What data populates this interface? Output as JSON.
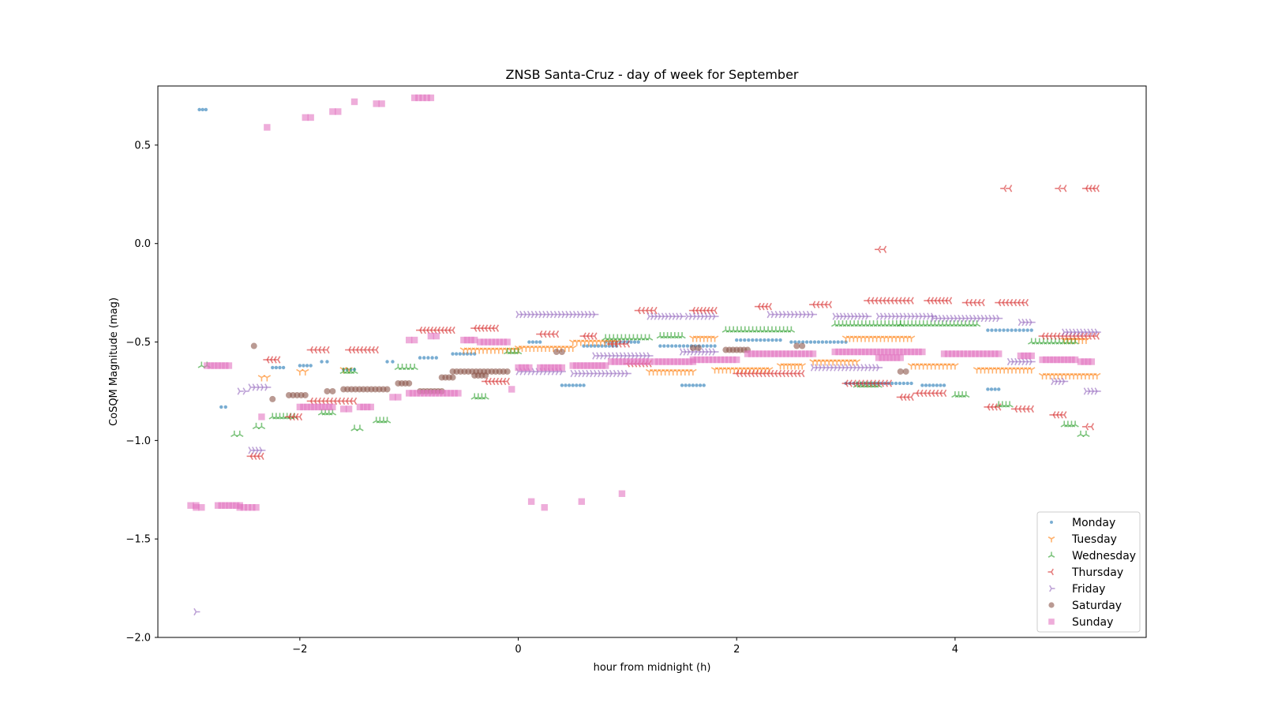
{
  "chart_data": {
    "type": "scatter",
    "title": "ZNSB Santa-Cruz - day of week for September",
    "xlabel": "hour from midnight (h)",
    "ylabel": "CoSQM Magnitude (mag)",
    "xlim": [
      -3.3,
      5.75
    ],
    "ylim": [
      -2.0,
      0.8
    ],
    "xticks": [
      -2,
      0,
      2,
      4
    ],
    "yticks": [
      0.5,
      0.0,
      -0.5,
      -1.0,
      -1.5,
      -2.0
    ],
    "xtick_labels": [
      "−2",
      "0",
      "2",
      "4"
    ],
    "ytick_labels": [
      "0.5",
      "0.0",
      "−0.5",
      "−1.0",
      "−1.5",
      "−2.0"
    ],
    "grid": false,
    "legend_position": "bottom-right",
    "series": [
      {
        "name": "Monday",
        "marker": "point",
        "color": "#1f77b4",
        "segments": [
          [
            -2.92,
            -2.86,
            0.68
          ],
          [
            -2.72,
            -2.68,
            -0.83
          ],
          [
            -2.25,
            -2.15,
            -0.63
          ],
          [
            -2.0,
            -1.9,
            -0.62
          ],
          [
            -1.8,
            -1.75,
            -0.6
          ],
          [
            -1.2,
            -1.15,
            -0.6
          ],
          [
            -0.9,
            -0.75,
            -0.58
          ],
          [
            -0.6,
            -0.4,
            -0.56
          ],
          [
            0.1,
            0.2,
            -0.5
          ],
          [
            0.4,
            0.6,
            -0.72
          ],
          [
            0.8,
            1.1,
            -0.5
          ],
          [
            1.3,
            1.8,
            -0.52
          ],
          [
            1.5,
            1.7,
            -0.72
          ],
          [
            2.0,
            2.4,
            -0.49
          ],
          [
            2.5,
            3.0,
            -0.5
          ],
          [
            3.0,
            3.6,
            -0.71
          ],
          [
            3.7,
            3.9,
            -0.72
          ],
          [
            4.3,
            4.7,
            -0.44
          ],
          [
            4.3,
            4.4,
            -0.74
          ],
          [
            0.6,
            0.9,
            -0.52
          ],
          [
            -1.6,
            -1.5,
            -0.64
          ]
        ]
      },
      {
        "name": "Tuesday",
        "marker": "tri_down",
        "color": "#ff7f0e",
        "segments": [
          [
            -2.35,
            -2.3,
            -0.68
          ],
          [
            -2.0,
            -1.95,
            -0.65
          ],
          [
            -1.6,
            -1.55,
            -0.64
          ],
          [
            -0.5,
            0.0,
            -0.54
          ],
          [
            0.0,
            0.5,
            -0.53
          ],
          [
            0.5,
            0.9,
            -0.5
          ],
          [
            1.2,
            1.6,
            -0.65
          ],
          [
            1.6,
            1.8,
            -0.48
          ],
          [
            1.8,
            2.3,
            -0.64
          ],
          [
            2.4,
            2.6,
            -0.62
          ],
          [
            2.7,
            3.1,
            -0.6
          ],
          [
            3.0,
            3.6,
            -0.48
          ],
          [
            3.6,
            4.0,
            -0.62
          ],
          [
            4.2,
            4.7,
            -0.64
          ],
          [
            4.8,
            5.3,
            -0.67
          ],
          [
            5.0,
            5.2,
            -0.49
          ]
        ]
      },
      {
        "name": "Wednesday",
        "marker": "tri_up",
        "color": "#2ca02c",
        "segments": [
          [
            -2.9,
            -2.85,
            -0.62
          ],
          [
            -2.6,
            -2.55,
            -0.97
          ],
          [
            -2.4,
            -2.35,
            -0.93
          ],
          [
            -2.25,
            -2.05,
            -0.88
          ],
          [
            -1.8,
            -1.7,
            -0.86
          ],
          [
            -1.6,
            -1.5,
            -0.65
          ],
          [
            -1.5,
            -1.45,
            -0.94
          ],
          [
            -1.3,
            -1.2,
            -0.9
          ],
          [
            -1.1,
            -0.95,
            -0.63
          ],
          [
            -0.4,
            -0.3,
            -0.78
          ],
          [
            -0.1,
            0.0,
            -0.55
          ],
          [
            0.8,
            1.2,
            -0.48
          ],
          [
            1.3,
            1.5,
            -0.47
          ],
          [
            1.9,
            2.5,
            -0.44
          ],
          [
            2.9,
            3.5,
            -0.41
          ],
          [
            3.5,
            4.2,
            -0.41
          ],
          [
            4.0,
            4.1,
            -0.77
          ],
          [
            4.4,
            4.5,
            -0.82
          ],
          [
            4.7,
            5.1,
            -0.5
          ],
          [
            5.0,
            5.1,
            -0.92
          ],
          [
            5.15,
            5.2,
            -0.97
          ],
          [
            3.1,
            3.3,
            -0.72
          ]
        ]
      },
      {
        "name": "Thursday",
        "marker": "tri_left",
        "color": "#d62728",
        "segments": [
          [
            -2.45,
            -2.35,
            -1.08
          ],
          [
            -2.3,
            -2.2,
            -0.59
          ],
          [
            -2.1,
            -2.0,
            -0.88
          ],
          [
            -1.9,
            -1.75,
            -0.54
          ],
          [
            -1.55,
            -1.3,
            -0.54
          ],
          [
            -1.9,
            -1.5,
            -0.8
          ],
          [
            -0.9,
            -0.6,
            -0.44
          ],
          [
            -0.4,
            -0.2,
            -0.43
          ],
          [
            -0.3,
            -0.1,
            -0.7
          ],
          [
            0.2,
            0.35,
            -0.46
          ],
          [
            0.6,
            0.7,
            -0.47
          ],
          [
            0.85,
            1.0,
            -0.51
          ],
          [
            1.1,
            1.25,
            -0.34
          ],
          [
            1.6,
            1.8,
            -0.34
          ],
          [
            2.2,
            2.3,
            -0.32
          ],
          [
            2.0,
            2.6,
            -0.66
          ],
          [
            2.7,
            2.85,
            -0.31
          ],
          [
            3.2,
            3.6,
            -0.29
          ],
          [
            3.5,
            3.6,
            -0.78
          ],
          [
            3.65,
            3.9,
            -0.76
          ],
          [
            3.75,
            3.95,
            -0.29
          ],
          [
            4.1,
            4.25,
            -0.3
          ],
          [
            4.4,
            4.65,
            -0.3
          ],
          [
            4.3,
            4.4,
            -0.83
          ],
          [
            4.55,
            4.7,
            -0.84
          ],
          [
            4.8,
            5.3,
            -0.47
          ],
          [
            4.9,
            5.0,
            -0.87
          ],
          [
            5.2,
            5.25,
            -0.93
          ],
          [
            3.3,
            3.35,
            -0.03
          ],
          [
            4.45,
            4.5,
            0.28
          ],
          [
            4.95,
            5.0,
            0.28
          ],
          [
            5.2,
            5.3,
            0.28
          ],
          [
            1.0,
            1.2,
            -0.61
          ],
          [
            3.0,
            3.4,
            -0.71
          ]
        ]
      },
      {
        "name": "Friday",
        "marker": "tri_right",
        "color": "#9467bd",
        "segments": [
          [
            -2.95,
            -2.95,
            -1.87
          ],
          [
            -2.45,
            -2.35,
            -1.05
          ],
          [
            -2.45,
            -2.3,
            -0.73
          ],
          [
            -2.55,
            -2.5,
            -0.75
          ],
          [
            0.0,
            0.7,
            -0.36
          ],
          [
            0.7,
            1.2,
            -0.57
          ],
          [
            1.2,
            1.5,
            -0.37
          ],
          [
            1.55,
            1.8,
            -0.37
          ],
          [
            2.3,
            2.7,
            -0.36
          ],
          [
            2.7,
            3.3,
            -0.63
          ],
          [
            2.9,
            3.2,
            -0.37
          ],
          [
            3.3,
            3.8,
            -0.37
          ],
          [
            3.8,
            4.4,
            -0.38
          ],
          [
            4.5,
            4.7,
            -0.6
          ],
          [
            4.6,
            4.7,
            -0.4
          ],
          [
            4.9,
            5.0,
            -0.7
          ],
          [
            5.0,
            5.3,
            -0.45
          ],
          [
            5.2,
            5.3,
            -0.75
          ],
          [
            0.0,
            0.4,
            -0.65
          ],
          [
            0.5,
            1.0,
            -0.66
          ],
          [
            1.5,
            1.8,
            -0.55
          ]
        ]
      },
      {
        "name": "Saturday",
        "marker": "circle",
        "color": "#8c564b",
        "segments": [
          [
            -2.42,
            -2.42,
            -0.52
          ],
          [
            -2.25,
            -2.25,
            -0.79
          ],
          [
            -2.1,
            -1.95,
            -0.77
          ],
          [
            -1.75,
            -1.7,
            -0.75
          ],
          [
            -1.6,
            -1.2,
            -0.74
          ],
          [
            -1.1,
            -1.0,
            -0.71
          ],
          [
            -0.9,
            -0.7,
            -0.75
          ],
          [
            -0.7,
            -0.6,
            -0.68
          ],
          [
            -0.6,
            -0.1,
            -0.65
          ],
          [
            -0.4,
            -0.3,
            -0.67
          ],
          [
            0.35,
            0.4,
            -0.55
          ],
          [
            1.6,
            1.65,
            -0.53
          ],
          [
            1.9,
            2.1,
            -0.54
          ],
          [
            2.55,
            2.6,
            -0.52
          ],
          [
            3.5,
            3.55,
            -0.65
          ]
        ]
      },
      {
        "name": "Sunday",
        "marker": "square",
        "color": "#e377c2",
        "segments": [
          [
            -3.0,
            -2.95,
            -1.33
          ],
          [
            -2.95,
            -2.9,
            -1.34
          ],
          [
            -2.75,
            -2.55,
            -1.33
          ],
          [
            -2.55,
            -2.4,
            -1.34
          ],
          [
            -2.85,
            -2.65,
            -0.62
          ],
          [
            -2.3,
            -2.3,
            0.59
          ],
          [
            -1.95,
            -1.9,
            0.64
          ],
          [
            -1.7,
            -1.65,
            0.67
          ],
          [
            -1.5,
            -1.5,
            0.72
          ],
          [
            -1.3,
            -1.25,
            0.71
          ],
          [
            -0.95,
            -0.8,
            0.74
          ],
          [
            -2.35,
            -2.35,
            -0.88
          ],
          [
            -2.0,
            -1.7,
            -0.83
          ],
          [
            -1.6,
            -1.55,
            -0.84
          ],
          [
            -1.45,
            -1.35,
            -0.83
          ],
          [
            -1.15,
            -1.1,
            -0.78
          ],
          [
            -1.0,
            -0.55,
            -0.76
          ],
          [
            -1.0,
            -0.95,
            -0.49
          ],
          [
            -0.8,
            -0.75,
            -0.47
          ],
          [
            -0.5,
            -0.4,
            -0.49
          ],
          [
            -0.35,
            -0.1,
            -0.5
          ],
          [
            0.0,
            0.1,
            -0.63
          ],
          [
            0.2,
            0.4,
            -0.63
          ],
          [
            0.5,
            0.8,
            -0.62
          ],
          [
            0.85,
            1.2,
            -0.6
          ],
          [
            1.25,
            1.6,
            -0.6
          ],
          [
            1.6,
            2.0,
            -0.59
          ],
          [
            2.1,
            2.7,
            -0.56
          ],
          [
            2.9,
            3.7,
            -0.55
          ],
          [
            3.3,
            3.5,
            -0.58
          ],
          [
            3.9,
            4.4,
            -0.56
          ],
          [
            4.6,
            4.7,
            -0.57
          ],
          [
            4.8,
            5.1,
            -0.59
          ],
          [
            5.15,
            5.25,
            -0.6
          ],
          [
            -0.06,
            -0.06,
            -0.74
          ],
          [
            0.12,
            0.12,
            -1.31
          ],
          [
            0.24,
            0.24,
            -1.34
          ],
          [
            0.58,
            0.58,
            -1.31
          ],
          [
            0.95,
            0.95,
            -1.27
          ]
        ]
      }
    ]
  }
}
